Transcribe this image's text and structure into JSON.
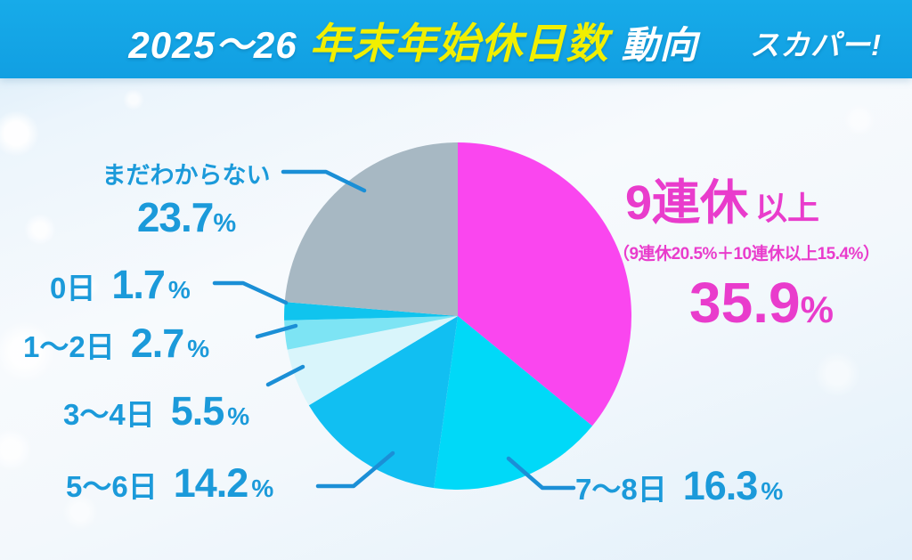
{
  "header": {
    "title_prefix": "2025〜26",
    "title_highlight": "年末年始休日数",
    "title_suffix": "動向",
    "brand": "スカパー!",
    "bg_color": "#14a7e6",
    "highlight_color": "#f1ef00"
  },
  "chart_data": {
    "type": "pie",
    "title": "2025〜26 年末年始休日数 動向",
    "start_angle_deg": 0,
    "direction": "clockwise",
    "legend_position": "none",
    "slices": [
      {
        "label": "9連休以上",
        "value": 35.9,
        "color": "#fa46ef",
        "note": "9連休20.5%＋10連休以上15.4%"
      },
      {
        "label": "7〜8日",
        "value": 16.3,
        "color": "#00d9f8"
      },
      {
        "label": "5〜6日",
        "value": 14.2,
        "color": "#11bff2"
      },
      {
        "label": "3〜4日",
        "value": 5.5,
        "color": "#d9f5fb"
      },
      {
        "label": "1〜2日",
        "value": 2.7,
        "color": "#7de4f4"
      },
      {
        "label": "0日",
        "value": 1.7,
        "color": "#10c4ee"
      },
      {
        "label": "まだわからない",
        "value": 23.7,
        "color": "#a7b8c3"
      }
    ]
  },
  "callout_main": {
    "title_big": "9連休",
    "title_small": "以上",
    "detail": "（9連休20.5%＋10連休以上15.4%）",
    "value": "35.9",
    "unit": "%",
    "color": "#e93ccc"
  },
  "labels": [
    {
      "name": "まだわからない",
      "value": "23.7",
      "unit": "%"
    },
    {
      "name": "0日",
      "value": "1.7",
      "unit": "%"
    },
    {
      "name": "1〜2日",
      "value": "2.7",
      "unit": "%"
    },
    {
      "name": "3〜4日",
      "value": "5.5",
      "unit": "%"
    },
    {
      "name": "5〜6日",
      "value": "14.2",
      "unit": "%"
    },
    {
      "name": "7〜8日",
      "value": "16.3",
      "unit": "%"
    }
  ],
  "label_color": "#1b9ada"
}
